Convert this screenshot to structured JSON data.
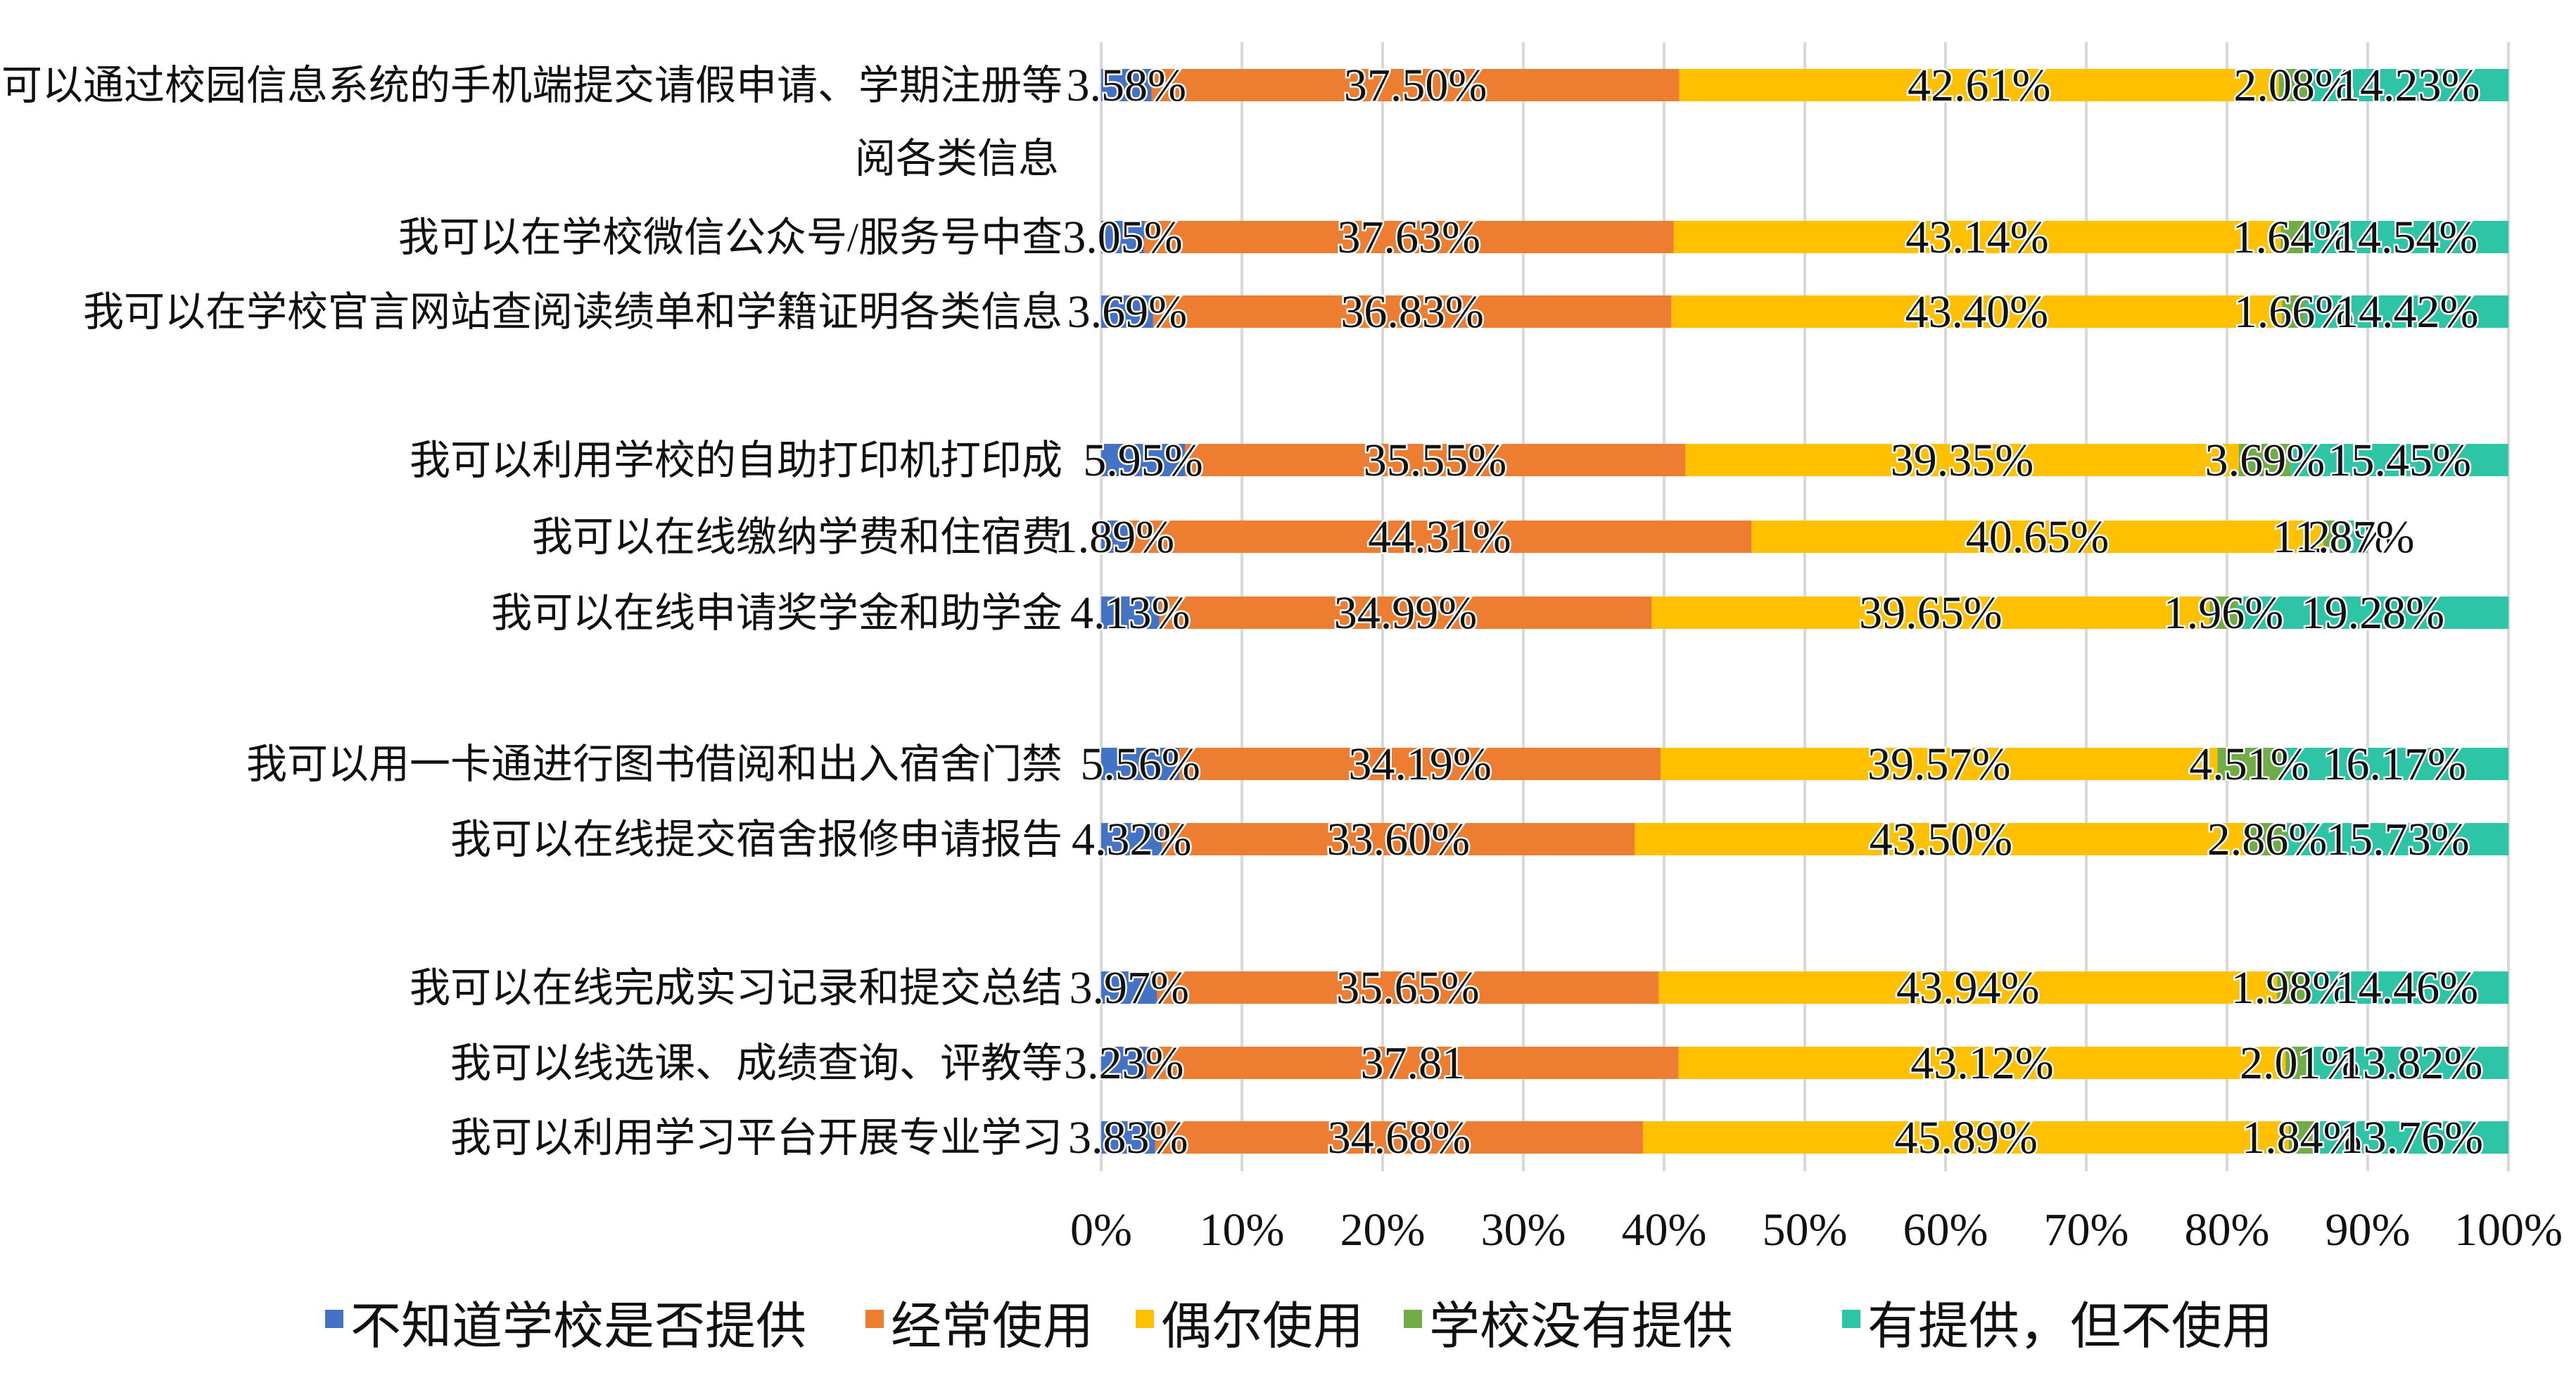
{
  "chart_data": {
    "type": "bar",
    "orientation": "horizontal",
    "stacked": "percent",
    "categories": [
      "我可以通过校园信息系统的手机端提交请假申请、学期注册等阅各类信息",
      "我可以在学校微信公众号/服务号中查",
      "我可以在学校官言网站查阅读绩单和学籍证明各类信息",
      "我可以利用学校的自助打印机打印成",
      "我可以在线缴纳学费和住宿费",
      "我可以在线申请奖学金和助学金",
      "我可以用一卡通进行图书借阅和出入宿舍门禁",
      "我可以在线提交宿舍报修申请报告",
      "我可以在线完成实习记录和提交总结",
      "我可以线选课、成绩查询、评教等",
      "我可以利用学习平台开展专业学习"
    ],
    "category_lines": [
      [
        "我可以通过校园信息系统的手机端提交请假申请、学期注册等",
        "阅各类信息"
      ],
      [
        "我可以在学校微信公众号/服务号中查"
      ],
      [
        "我可以在学校官言网站查阅读绩单和学籍证明各类信息"
      ],
      [
        "我可以利用学校的自助打印机打印成"
      ],
      [
        "我可以在线缴纳学费和住宿费"
      ],
      [
        "我可以在线申请奖学金和助学金"
      ],
      [
        "我可以用一卡通进行图书借阅和出入宿舍门禁"
      ],
      [
        "我可以在线提交宿舍报修申请报告"
      ],
      [
        "我可以在线完成实习记录和提交总结"
      ],
      [
        "我可以线选课、成绩查询、评教等"
      ],
      [
        "我可以利用学习平台开展专业学习"
      ]
    ],
    "series": [
      {
        "name": "不知道学校是否提供",
        "color": "#4472C4",
        "values": [
          3.58,
          3.05,
          3.69,
          5.95,
          1.89,
          4.13,
          5.56,
          4.32,
          3.97,
          3.23,
          3.83
        ],
        "labels": [
          "3.58%",
          "3.05%",
          "3.69%",
          "5.95%",
          "1.89%",
          "4.13%",
          "5.56%",
          "4.32%",
          "3.97%",
          "3.23%",
          "3.83%"
        ]
      },
      {
        "name": "经常使用",
        "color": "#ED7D31",
        "values": [
          37.5,
          37.63,
          36.83,
          35.55,
          44.31,
          34.99,
          34.19,
          33.6,
          35.65,
          37.81,
          34.68
        ],
        "labels": [
          "37.50%",
          "37.63%",
          "36.83%",
          "35.55%",
          "44.31%",
          "34.99%",
          "34.19%",
          "33.60%",
          "35.65%",
          "37.81",
          "34.68%"
        ]
      },
      {
        "name": "偶尔使用",
        "color": "#FFC000",
        "values": [
          42.61,
          43.14,
          43.4,
          39.35,
          40.65,
          39.65,
          39.57,
          43.5,
          43.94,
          43.12,
          45.89
        ],
        "labels": [
          "42.61%",
          "43.14%",
          "43.40%",
          "39.35%",
          "40.65%",
          "39.65%",
          "39.57%",
          "43.50%",
          "43.94%",
          "43.12%",
          "45.89%"
        ]
      },
      {
        "name": "学校没有提供",
        "color": "#70AD47",
        "values": [
          2.08,
          1.64,
          1.66,
          3.69,
          1.28,
          1.96,
          4.51,
          2.86,
          1.98,
          2.01,
          1.84
        ],
        "labels": [
          "2.08%",
          "1.64%",
          "1.66%",
          "3.69%",
          "1.28%",
          "1.96%",
          "4.51%",
          "2.86%",
          "1.98%",
          "2.01%",
          "1.84%"
        ]
      },
      {
        "name": "有提供，但不使用",
        "color": "#2EC4A6",
        "values": [
          14.23,
          14.54,
          14.42,
          15.45,
          1.87,
          19.28,
          16.17,
          15.73,
          14.46,
          13.82,
          13.76
        ],
        "labels": [
          "14.23%",
          "14.54%",
          "14.42%",
          "15.45%",
          "1.87%",
          "19.28%",
          "16.17%",
          "15.73%",
          "14.46%",
          "13.82%",
          "13.76%"
        ]
      }
    ],
    "xticks": [
      "0%",
      "10%",
      "20%",
      "30%",
      "40%",
      "50%",
      "60%",
      "70%",
      "80%",
      "90%",
      "100%"
    ],
    "xlim": [
      0,
      100
    ],
    "grid": true,
    "legend_position": "bottom",
    "title": "",
    "xlabel": "",
    "ylabel": ""
  }
}
